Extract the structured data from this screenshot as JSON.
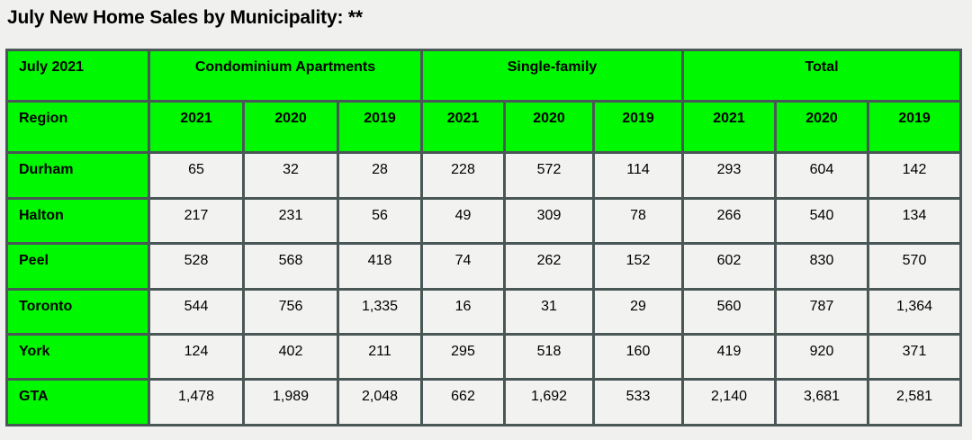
{
  "title": "July New Home Sales by Municipality: **",
  "chart_data": {
    "type": "table",
    "corner_label": "July 2021",
    "region_label": "Region",
    "groups": [
      "Condominium Apartments",
      "Single-family",
      "Total"
    ],
    "years": [
      "2021",
      "2020",
      "2019"
    ],
    "rows": [
      {
        "region": "Durham",
        "values": [
          "65",
          "32",
          "28",
          "228",
          "572",
          "114",
          "293",
          "604",
          "142"
        ]
      },
      {
        "region": "Halton",
        "values": [
          "217",
          "231",
          "56",
          "49",
          "309",
          "78",
          "266",
          "540",
          "134"
        ]
      },
      {
        "region": "Peel",
        "values": [
          "528",
          "568",
          "418",
          "74",
          "262",
          "152",
          "602",
          "830",
          "570"
        ]
      },
      {
        "region": "Toronto",
        "values": [
          "544",
          "756",
          "1,335",
          "16",
          "31",
          "29",
          "560",
          "787",
          "1,364"
        ]
      },
      {
        "region": "York",
        "values": [
          "124",
          "402",
          "211",
          "295",
          "518",
          "160",
          "419",
          "920",
          "371"
        ]
      },
      {
        "region": "GTA",
        "values": [
          "1,478",
          "1,989",
          "2,048",
          "662",
          "1,692",
          "533",
          "2,140",
          "3,681",
          "2,581"
        ]
      }
    ]
  },
  "colors": {
    "header_green": "#00f800",
    "cell_background": "#f2f2f0",
    "grid_line": "#4a5757",
    "page_background": "#f0f0ee"
  }
}
